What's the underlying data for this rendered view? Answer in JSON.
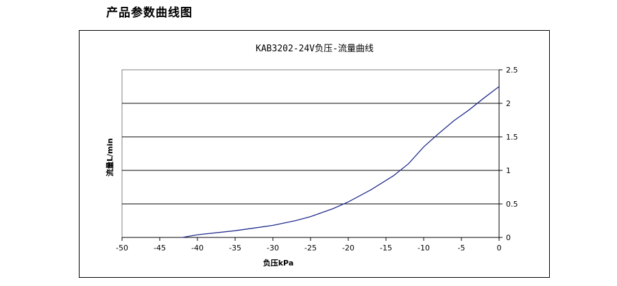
{
  "page": {
    "heading": "产品参数曲线图"
  },
  "chart_data": {
    "type": "line",
    "title": "KAB3202-24V负压-流量曲线",
    "xlabel": "负压kPa",
    "ylabel": "流量L/min",
    "xlim": [
      -50,
      0
    ],
    "ylim": [
      0,
      2.5
    ],
    "x_ticks": [
      "-50",
      "-45",
      "-40",
      "-35",
      "-30",
      "-25",
      "-20",
      "-15",
      "-10",
      "-5",
      "0"
    ],
    "y_ticks": [
      "0",
      "0.5",
      "1",
      "1.5",
      "2",
      "2.5"
    ],
    "grid": "horizontal",
    "legend": "none",
    "series": [
      {
        "color": "#1f2a8c",
        "x": [
          -42,
          -40,
          -35,
          -30,
          -27,
          -25,
          -22,
          -20,
          -17,
          -14,
          -12,
          -10,
          -8,
          -6,
          -4,
          -2,
          0
        ],
        "y": [
          0.0,
          0.04,
          0.1,
          0.18,
          0.25,
          0.31,
          0.43,
          0.53,
          0.71,
          0.92,
          1.1,
          1.35,
          1.55,
          1.74,
          1.9,
          2.08,
          2.25
        ]
      }
    ]
  }
}
